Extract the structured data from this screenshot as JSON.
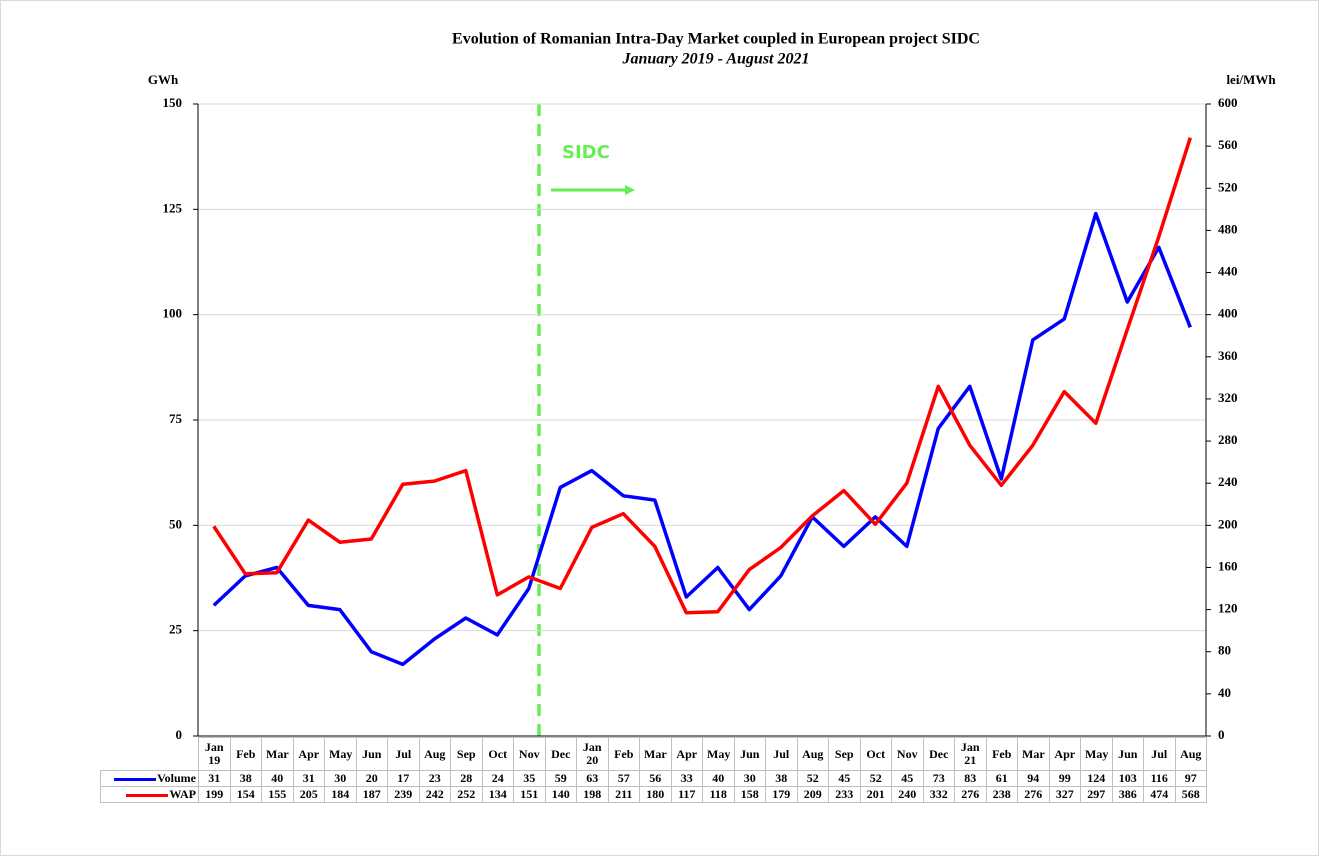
{
  "chart_data": {
    "type": "line",
    "title": "Evolution of Romanian Intra-Day Market coupled in European project SIDC",
    "subtitle": "January 2019 - August 2021",
    "y_label": "GWh",
    "y2_label": "lei/MWh",
    "annotation": "SIDC",
    "categories": [
      "Jan 19",
      "Feb",
      "Mar",
      "Apr",
      "May",
      "Jun",
      "Jul",
      "Aug",
      "Sep",
      "Oct",
      "Nov",
      "Dec",
      "Jan 20",
      "Feb",
      "Mar",
      "Apr",
      "May",
      "Jun",
      "Jul",
      "Aug",
      "Sep",
      "Oct",
      "Nov",
      "Dec",
      "Jan 21",
      "Feb",
      "Mar",
      "Apr",
      "May",
      "Jun",
      "Jul",
      "Aug"
    ],
    "series": [
      {
        "name": "Volume",
        "color": "#0000ff",
        "values": [
          31,
          38,
          40,
          31,
          30,
          20,
          17,
          23,
          28,
          24,
          35,
          59,
          63,
          57,
          56,
          33,
          40,
          30,
          38,
          52,
          45,
          52,
          45,
          73,
          83,
          61,
          94,
          99,
          124,
          103,
          116,
          97
        ]
      },
      {
        "name": "WAP",
        "color": "#ff0000",
        "axis": "y2",
        "values": [
          199,
          154,
          155,
          205,
          184,
          187,
          239,
          242,
          252,
          134,
          151,
          140,
          198,
          211,
          180,
          117,
          118,
          158,
          179,
          209,
          233,
          201,
          240,
          332,
          276,
          238,
          276,
          327,
          297,
          386,
          474,
          568
        ]
      }
    ],
    "ylim": [
      0,
      150
    ],
    "yticks": [
      0,
      25,
      50,
      75,
      100,
      125,
      150
    ],
    "y2lim": [
      0,
      600
    ],
    "y2ticks": [
      0,
      40,
      80,
      120,
      160,
      200,
      240,
      280,
      320,
      360,
      400,
      440,
      480,
      520,
      560,
      600
    ],
    "grid": true
  }
}
